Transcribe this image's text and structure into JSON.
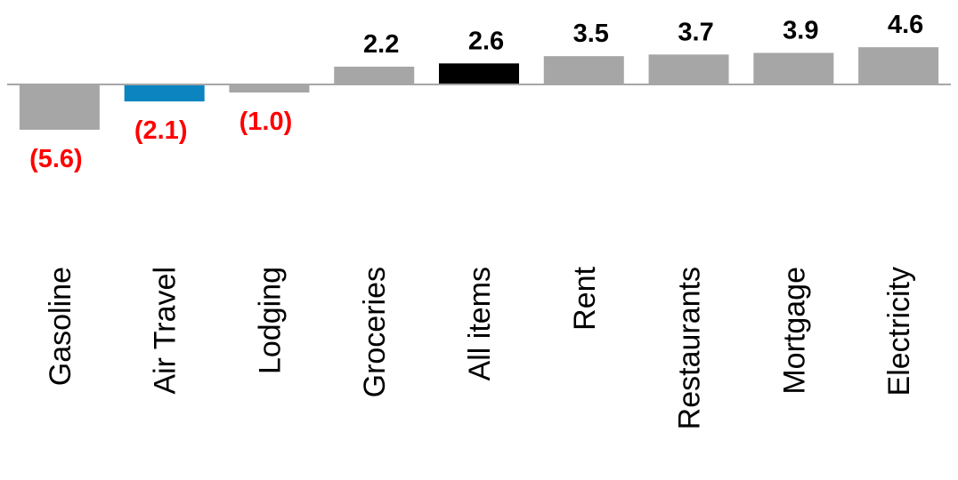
{
  "chart_data": {
    "type": "bar",
    "title": "",
    "xlabel": "",
    "ylabel": "",
    "categories": [
      "Gasoline",
      "Air Travel",
      "Lodging",
      "Groceries",
      "All items",
      "Rent",
      "Restaurants",
      "Mortgage",
      "Electricity"
    ],
    "values": [
      -5.6,
      -2.1,
      -1.0,
      2.2,
      2.6,
      3.5,
      3.7,
      3.9,
      4.6
    ],
    "value_labels": [
      "(5.6)",
      "(2.1)",
      "(1.0)",
      "2.2",
      "2.6",
      "3.5",
      "3.7",
      "3.9",
      "4.6"
    ],
    "bar_colors": [
      "#a6a6a6",
      "#0b84bf",
      "#a6a6a6",
      "#a6a6a6",
      "#000000",
      "#a6a6a6",
      "#a6a6a6",
      "#a6a6a6",
      "#a6a6a6"
    ],
    "negative_label_color": "#ff0000",
    "positive_label_color": "#000000",
    "axis_line_color": "#a6a6a6",
    "grid": false,
    "legend": "none"
  }
}
